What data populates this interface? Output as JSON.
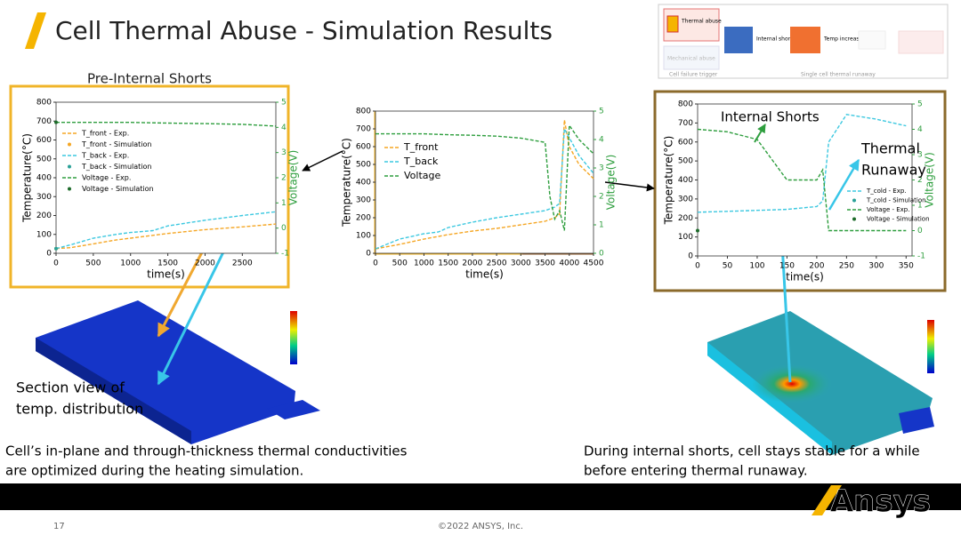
{
  "title": "Cell Thermal Abuse - Simulation Results",
  "pre_label": "Pre-Internal Shorts",
  "section_view": [
    "Section view of",
    "temp. distribution"
  ],
  "caption_left": [
    "Cell’s in-plane and through-thickness thermal conductivities",
    "are optimized during the heating simulation."
  ],
  "caption_right": [
    "During internal shorts, cell stays stable for a while",
    "before entering thermal runaway."
  ],
  "diagram": {
    "thermal_abuse": "Thermal abuse",
    "mechanical_abuse": "Mechanical abuse",
    "internal_shorting": "Internal shorting",
    "temp_increase": "Temp increase",
    "trigger": "Cell failure trigger",
    "runaway": "Single cell thermal runaway"
  },
  "footer": {
    "page": 17,
    "copyright": "©2022 ANSYS, Inc.",
    "logo": "Ansys"
  },
  "chart_data": [
    {
      "type": "line",
      "xlabel": "time(s)",
      "ylabel": "Temperature(°C)",
      "y2label": "Voltage(V)",
      "x": [
        0,
        200,
        500,
        800,
        1000,
        1300,
        1500,
        2000,
        2500,
        2950
      ],
      "xlim": [
        0,
        2950
      ],
      "xticks": [
        0,
        500,
        1000,
        1500,
        2000,
        2500
      ],
      "ylim": [
        0,
        800
      ],
      "yticks": [
        0,
        100,
        200,
        300,
        400,
        500,
        600,
        700,
        800
      ],
      "y2lim": [
        -1,
        5
      ],
      "y2ticks": [
        -1,
        0,
        1,
        2,
        3,
        4,
        5
      ],
      "series": [
        {
          "name": "T_front - Exp.",
          "color": "#f5a623",
          "style": "dashed",
          "values": [
            25,
            30,
            50,
            70,
            80,
            95,
            105,
            125,
            140,
            155
          ]
        },
        {
          "name": "T_front - Simulation",
          "color": "#f5a623",
          "style": "markers",
          "values": [
            25,
            null,
            null,
            null,
            null,
            null,
            null,
            null,
            null,
            null
          ]
        },
        {
          "name": "T_back - Exp.",
          "color": "#3cc8e0",
          "style": "dashed",
          "values": [
            25,
            45,
            80,
            100,
            110,
            120,
            145,
            175,
            200,
            220
          ]
        },
        {
          "name": "T_back - Simulation",
          "color": "#2aa198",
          "style": "markers",
          "values": [
            25,
            null,
            null,
            null,
            null,
            null,
            null,
            null,
            null,
            null
          ]
        },
        {
          "name": "Voltage - Exp.",
          "color": "#2e9e3e",
          "style": "dashed",
          "axis": "y2",
          "values": [
            4.2,
            4.2,
            4.2,
            4.2,
            4.2,
            4.18,
            4.17,
            4.15,
            4.12,
            4.05
          ]
        },
        {
          "name": "Voltage - Simulation",
          "color": "#1d6b2a",
          "style": "markers",
          "axis": "y2",
          "values": [
            4.2,
            null,
            null,
            null,
            null,
            null,
            null,
            null,
            null,
            null
          ]
        }
      ]
    },
    {
      "type": "line",
      "xlabel": "time(s)",
      "ylabel": "Temperature(°C)",
      "y2label": "Voltage(V)",
      "x": [
        0,
        500,
        1000,
        1300,
        1500,
        2000,
        2500,
        3000,
        3500,
        3600,
        3700,
        3800,
        3900,
        4000,
        4200,
        4500
      ],
      "xlim": [
        0,
        4500
      ],
      "xticks": [
        0,
        500,
        1000,
        1500,
        2000,
        2500,
        3000,
        3500,
        4000,
        4500
      ],
      "ylim": [
        0,
        800
      ],
      "yticks": [
        0,
        100,
        200,
        300,
        400,
        500,
        600,
        700,
        800
      ],
      "y2lim": [
        0,
        5
      ],
      "y2ticks": [
        0,
        1,
        2,
        3,
        4,
        5
      ],
      "series": [
        {
          "name": "T_front",
          "color": "#f5a623",
          "style": "dashed",
          "values": [
            25,
            50,
            80,
            95,
            105,
            125,
            140,
            160,
            180,
            190,
            200,
            220,
            750,
            600,
            500,
            420
          ]
        },
        {
          "name": "T_back",
          "color": "#3cc8e0",
          "style": "dashed",
          "values": [
            25,
            80,
            110,
            120,
            145,
            175,
            200,
            220,
            240,
            250,
            260,
            280,
            700,
            650,
            550,
            450
          ]
        },
        {
          "name": "Voltage",
          "color": "#2e9e3e",
          "style": "dashed",
          "axis": "y2",
          "values": [
            4.2,
            4.2,
            4.2,
            4.18,
            4.17,
            4.15,
            4.12,
            4.05,
            3.9,
            2,
            1.2,
            1.5,
            0.8,
            4.5,
            4,
            3.5
          ]
        }
      ]
    },
    {
      "type": "line",
      "xlabel": "time(s)",
      "ylabel": "Temperature(°C)",
      "y2label": "Voltage(V)",
      "annotations": [
        "Internal Shorts",
        "Thermal",
        "Runaway"
      ],
      "x": [
        0,
        50,
        100,
        150,
        200,
        210,
        220,
        250,
        300,
        350
      ],
      "xlim": [
        0,
        360
      ],
      "xticks": [
        0,
        50,
        100,
        150,
        200,
        250,
        300,
        350
      ],
      "ylim": [
        0,
        800
      ],
      "yticks": [
        0,
        100,
        200,
        300,
        400,
        500,
        600,
        700,
        800
      ],
      "y2lim": [
        -1,
        5
      ],
      "y2ticks": [
        -1,
        0,
        1,
        2,
        3,
        4,
        5
      ],
      "series": [
        {
          "name": "T_cold - Exp.",
          "color": "#3cc8e0",
          "style": "dashed",
          "values": [
            230,
            235,
            240,
            245,
            260,
            290,
            600,
            745,
            720,
            685
          ]
        },
        {
          "name": "T_cold - Simulation",
          "color": "#2aa198",
          "style": "markers",
          "values": [
            null,
            null,
            null,
            null,
            null,
            null,
            null,
            null,
            null,
            null
          ]
        },
        {
          "name": "Voltage - Exp.",
          "color": "#2e9e3e",
          "style": "dashed",
          "axis": "y2",
          "values": [
            4.0,
            3.9,
            3.6,
            2.0,
            2.0,
            2.4,
            0,
            0,
            0,
            0
          ]
        },
        {
          "name": "Voltage - Simulation",
          "color": "#1d6b2a",
          "style": "markers",
          "axis": "y2",
          "values": [
            0,
            null,
            null,
            null,
            null,
            null,
            null,
            null,
            null,
            null
          ]
        }
      ]
    }
  ]
}
